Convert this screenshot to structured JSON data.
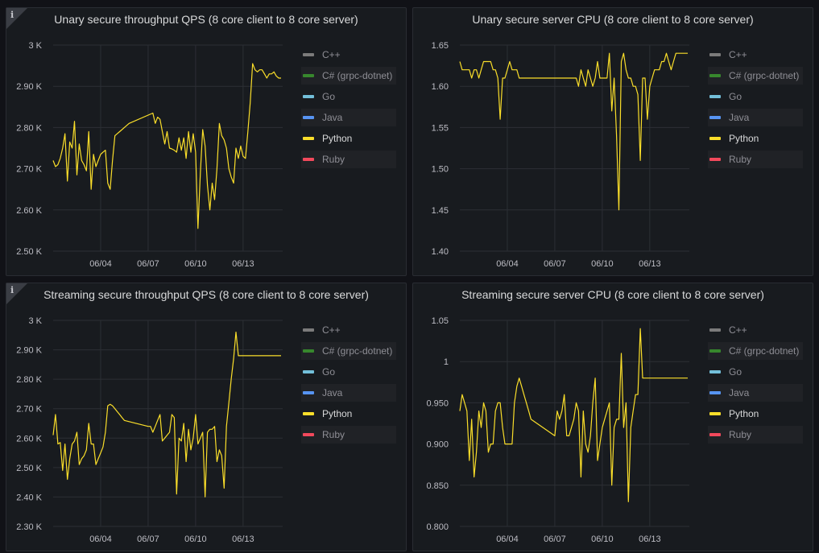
{
  "legend": [
    {
      "label": "C++",
      "color": "#7b7b7b",
      "highlight": false,
      "active": false
    },
    {
      "label": "C# (grpc-dotnet)",
      "color": "#37872d",
      "highlight": true,
      "active": false
    },
    {
      "label": "Go",
      "color": "#73bfd9",
      "highlight": false,
      "active": false
    },
    {
      "label": "Java",
      "color": "#5794f2",
      "highlight": true,
      "active": false
    },
    {
      "label": "Python",
      "color": "#fade2a",
      "highlight": false,
      "active": true
    },
    {
      "label": "Ruby",
      "color": "#f2495c",
      "highlight": true,
      "active": false
    }
  ],
  "info_icon": "info-icon",
  "chart_data": [
    {
      "type": "line",
      "title": "Unary secure throughput QPS (8 core client to 8 core server)",
      "ylim": [
        2500,
        3000
      ],
      "yticks": [
        2500,
        2600,
        2700,
        2800,
        2900,
        3000
      ],
      "ytick_labels": [
        "2.50 K",
        "2.60 K",
        "2.70 K",
        "2.80 K",
        "2.90 K",
        "3 K"
      ],
      "xlim": [
        0,
        14.5
      ],
      "xticks": [
        3,
        6,
        9,
        12
      ],
      "xtick_labels": [
        "06/04",
        "06/07",
        "06/10",
        "06/13"
      ],
      "grid": true,
      "legend_position": "right",
      "series": [
        {
          "name": "Python",
          "color": "#fade2a",
          "x": [
            0,
            0.15,
            0.3,
            0.45,
            0.6,
            0.75,
            0.9,
            1.05,
            1.2,
            1.35,
            1.5,
            1.65,
            1.8,
            1.95,
            2.1,
            2.25,
            2.4,
            2.55,
            2.7,
            2.85,
            3.0,
            3.15,
            3.3,
            3.45,
            3.6,
            3.75,
            3.9,
            4.05,
            4.2,
            4.35,
            4.5,
            4.65,
            4.8,
            6.3,
            6.45,
            6.6,
            6.75,
            6.9,
            7.05,
            7.2,
            7.35,
            7.5,
            7.65,
            7.8,
            7.95,
            8.1,
            8.25,
            8.4,
            8.55,
            8.7,
            8.85,
            9.0,
            9.15,
            9.3,
            9.45,
            9.6,
            9.75,
            9.9,
            10.05,
            10.2,
            10.35,
            10.5,
            10.65,
            10.8,
            10.95,
            11.1,
            11.25,
            11.4,
            11.55,
            11.7,
            11.85,
            12.0,
            12.15,
            12.3,
            12.45,
            12.6,
            12.75,
            12.9,
            13.05,
            13.2,
            13.35,
            13.5,
            13.65,
            13.8,
            13.95,
            14.1,
            14.25,
            14.4
          ],
          "values": [
            2720,
            2705,
            2710,
            2725,
            2750,
            2785,
            2670,
            2765,
            2750,
            2815,
            2685,
            2760,
            2720,
            2710,
            2695,
            2790,
            2650,
            2735,
            2705,
            2720,
            2735,
            2740,
            2745,
            2665,
            2650,
            2720,
            2780,
            2785,
            2790,
            2795,
            2800,
            2805,
            2810,
            2835,
            2810,
            2825,
            2820,
            2790,
            2760,
            2790,
            2750,
            2748,
            2745,
            2740,
            2775,
            2745,
            2775,
            2725,
            2790,
            2740,
            2785,
            2740,
            2555,
            2690,
            2795,
            2755,
            2660,
            2600,
            2665,
            2625,
            2700,
            2810,
            2780,
            2770,
            2750,
            2700,
            2680,
            2665,
            2750,
            2725,
            2755,
            2730,
            2725,
            2790,
            2860,
            2955,
            2940,
            2935,
            2940,
            2940,
            2930,
            2920,
            2930,
            2930,
            2935,
            2925,
            2920,
            2920
          ]
        }
      ]
    },
    {
      "type": "line",
      "title": "Unary secure server CPU (8 core client to 8 core server)",
      "ylim": [
        1.4,
        1.65
      ],
      "yticks": [
        1.4,
        1.45,
        1.5,
        1.55,
        1.6,
        1.65
      ],
      "ytick_labels": [
        "1.40",
        "1.45",
        "1.50",
        "1.55",
        "1.60",
        "1.65"
      ],
      "xlim": [
        0,
        14.5
      ],
      "xticks": [
        3,
        6,
        9,
        12
      ],
      "xtick_labels": [
        "06/04",
        "06/07",
        "06/10",
        "06/13"
      ],
      "grid": true,
      "legend_position": "right",
      "series": [
        {
          "name": "Python",
          "color": "#fade2a",
          "x": [
            0,
            0.15,
            0.3,
            0.45,
            0.6,
            0.75,
            0.9,
            1.05,
            1.2,
            1.35,
            1.5,
            1.65,
            1.8,
            1.95,
            2.1,
            2.25,
            2.4,
            2.55,
            2.7,
            2.85,
            3.0,
            3.15,
            3.3,
            3.45,
            3.6,
            3.75,
            3.9,
            4.05,
            4.2,
            4.35,
            4.5,
            6.0,
            6.15,
            6.3,
            6.45,
            6.6,
            6.75,
            6.9,
            7.05,
            7.2,
            7.35,
            7.5,
            7.65,
            7.8,
            7.95,
            8.1,
            8.25,
            8.4,
            8.55,
            8.7,
            8.85,
            9.0,
            9.15,
            9.3,
            9.45,
            9.6,
            9.75,
            9.9,
            10.05,
            10.2,
            10.35,
            10.5,
            10.65,
            10.8,
            10.95,
            11.1,
            11.25,
            11.4,
            11.55,
            11.7,
            11.85,
            12.0,
            12.15,
            12.3,
            12.45,
            12.6,
            12.75,
            12.9,
            13.05,
            13.2,
            13.35,
            13.5,
            13.65,
            13.8,
            13.95,
            14.1,
            14.25,
            14.4
          ],
          "values": [
            1.63,
            1.62,
            1.62,
            1.62,
            1.62,
            1.61,
            1.62,
            1.62,
            1.61,
            1.62,
            1.63,
            1.63,
            1.63,
            1.63,
            1.62,
            1.62,
            1.61,
            1.56,
            1.61,
            1.61,
            1.62,
            1.63,
            1.62,
            1.62,
            1.62,
            1.61,
            1.61,
            1.61,
            1.61,
            1.61,
            1.61,
            1.61,
            1.61,
            1.61,
            1.61,
            1.61,
            1.61,
            1.61,
            1.61,
            1.61,
            1.61,
            1.6,
            1.62,
            1.61,
            1.6,
            1.62,
            1.61,
            1.6,
            1.61,
            1.63,
            1.61,
            1.61,
            1.61,
            1.61,
            1.64,
            1.57,
            1.61,
            1.54,
            1.45,
            1.63,
            1.64,
            1.62,
            1.61,
            1.61,
            1.6,
            1.6,
            1.59,
            1.51,
            1.61,
            1.61,
            1.56,
            1.6,
            1.61,
            1.62,
            1.62,
            1.62,
            1.63,
            1.63,
            1.64,
            1.63,
            1.62,
            1.63,
            1.64,
            1.64,
            1.64,
            1.64,
            1.64,
            1.64
          ]
        }
      ]
    },
    {
      "type": "line",
      "title": "Streaming secure throughput QPS (8 core client to 8 core server)",
      "ylim": [
        2300,
        3000
      ],
      "yticks": [
        2300,
        2400,
        2500,
        2600,
        2700,
        2800,
        2900,
        3000
      ],
      "ytick_labels": [
        "2.30 K",
        "2.40 K",
        "2.50 K",
        "2.60 K",
        "2.70 K",
        "2.80 K",
        "2.90 K",
        "3 K"
      ],
      "xlim": [
        0,
        14.5
      ],
      "xticks": [
        3,
        6,
        9,
        12
      ],
      "xtick_labels": [
        "06/04",
        "06/07",
        "06/10",
        "06/13"
      ],
      "grid": true,
      "legend_position": "right",
      "series": [
        {
          "name": "Python",
          "color": "#fade2a",
          "x": [
            0,
            0.15,
            0.3,
            0.45,
            0.6,
            0.75,
            0.9,
            1.05,
            1.2,
            1.35,
            1.5,
            1.65,
            1.8,
            1.95,
            2.1,
            2.25,
            2.4,
            2.55,
            2.7,
            2.85,
            3.0,
            3.15,
            3.3,
            3.45,
            3.6,
            3.75,
            3.9,
            4.05,
            4.2,
            4.35,
            4.5,
            6.0,
            6.15,
            6.3,
            6.45,
            6.6,
            6.75,
            6.9,
            7.05,
            7.2,
            7.35,
            7.5,
            7.65,
            7.8,
            7.95,
            8.1,
            8.25,
            8.4,
            8.55,
            8.7,
            8.85,
            9.0,
            9.15,
            9.3,
            9.45,
            9.6,
            9.75,
            9.9,
            10.05,
            10.2,
            10.35,
            10.5,
            10.65,
            10.8,
            10.95,
            11.1,
            11.25,
            11.4,
            11.55,
            11.7,
            11.85,
            12.0,
            12.15,
            12.3,
            12.45,
            12.6,
            12.75,
            12.9,
            13.05,
            13.2,
            13.35,
            13.5,
            13.65,
            13.8,
            13.95,
            14.1,
            14.25,
            14.4
          ],
          "values": [
            2610,
            2680,
            2580,
            2585,
            2490,
            2580,
            2460,
            2530,
            2580,
            2590,
            2620,
            2510,
            2530,
            2540,
            2560,
            2650,
            2580,
            2580,
            2510,
            2530,
            2550,
            2570,
            2620,
            2710,
            2715,
            2710,
            2700,
            2690,
            2680,
            2670,
            2660,
            2640,
            2640,
            2620,
            2640,
            2660,
            2680,
            2590,
            2600,
            2610,
            2620,
            2680,
            2670,
            2410,
            2600,
            2590,
            2650,
            2520,
            2630,
            2560,
            2600,
            2680,
            2580,
            2600,
            2620,
            2400,
            2620,
            2630,
            2630,
            2640,
            2520,
            2560,
            2540,
            2430,
            2640,
            2720,
            2800,
            2870,
            2960,
            2880,
            2880,
            2880,
            2880,
            2880,
            2880,
            2880,
            2880,
            2880,
            2880,
            2880,
            2880,
            2880,
            2880,
            2880,
            2880,
            2880,
            2880,
            2880
          ]
        }
      ]
    },
    {
      "type": "line",
      "title": "Streaming secure server CPU (8 core client to 8 core server)",
      "ylim": [
        0.8,
        1.05
      ],
      "yticks": [
        0.8,
        0.85,
        0.9,
        0.95,
        1.0,
        1.05
      ],
      "ytick_labels": [
        "0.800",
        "0.850",
        "0.900",
        "0.950",
        "1",
        "1.05"
      ],
      "xlim": [
        0,
        14.5
      ],
      "xticks": [
        3,
        6,
        9,
        12
      ],
      "xtick_labels": [
        "06/04",
        "06/07",
        "06/10",
        "06/13"
      ],
      "grid": true,
      "legend_position": "right",
      "series": [
        {
          "name": "Python",
          "color": "#fade2a",
          "x": [
            0,
            0.15,
            0.3,
            0.45,
            0.6,
            0.75,
            0.9,
            1.05,
            1.2,
            1.35,
            1.5,
            1.65,
            1.8,
            1.95,
            2.1,
            2.25,
            2.4,
            2.55,
            2.7,
            2.85,
            3.0,
            3.15,
            3.3,
            3.45,
            3.6,
            3.75,
            3.9,
            4.05,
            4.2,
            4.35,
            4.5,
            6.0,
            6.15,
            6.3,
            6.45,
            6.6,
            6.75,
            6.9,
            7.05,
            7.2,
            7.35,
            7.5,
            7.65,
            7.8,
            7.95,
            8.1,
            8.25,
            8.4,
            8.55,
            8.7,
            8.85,
            9.0,
            9.15,
            9.3,
            9.45,
            9.6,
            9.75,
            9.9,
            10.05,
            10.2,
            10.35,
            10.5,
            10.65,
            10.8,
            10.95,
            11.1,
            11.25,
            11.4,
            11.55,
            11.7,
            11.85,
            12.0,
            12.15,
            12.3,
            12.45,
            12.6,
            12.75,
            12.9,
            13.05,
            13.2,
            13.35,
            13.5,
            13.65,
            13.8,
            13.95,
            14.1,
            14.25,
            14.4
          ],
          "values": [
            0.94,
            0.96,
            0.95,
            0.94,
            0.88,
            0.93,
            0.86,
            0.89,
            0.94,
            0.92,
            0.95,
            0.94,
            0.89,
            0.9,
            0.9,
            0.94,
            0.95,
            0.95,
            0.92,
            0.9,
            0.9,
            0.9,
            0.9,
            0.95,
            0.97,
            0.98,
            0.97,
            0.96,
            0.95,
            0.94,
            0.93,
            0.91,
            0.94,
            0.93,
            0.94,
            0.96,
            0.91,
            0.91,
            0.92,
            0.93,
            0.95,
            0.94,
            0.86,
            0.94,
            0.9,
            0.89,
            0.91,
            0.95,
            0.98,
            0.88,
            0.9,
            0.92,
            0.93,
            0.94,
            0.95,
            0.85,
            0.92,
            0.93,
            0.93,
            1.01,
            0.92,
            0.95,
            0.83,
            0.92,
            0.94,
            0.96,
            0.96,
            1.04,
            0.98,
            0.98,
            0.98,
            0.98,
            0.98,
            0.98,
            0.98,
            0.98,
            0.98,
            0.98,
            0.98,
            0.98,
            0.98,
            0.98,
            0.98,
            0.98,
            0.98,
            0.98,
            0.98,
            0.98
          ]
        }
      ]
    }
  ]
}
